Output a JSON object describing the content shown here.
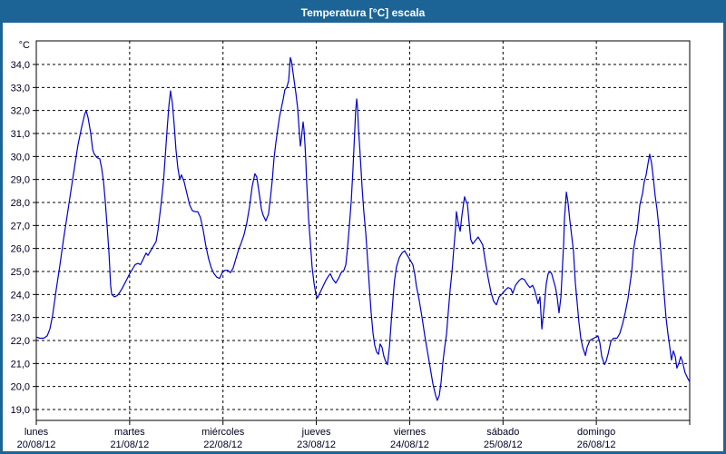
{
  "window": {
    "title": "Temperatura [°C] escala",
    "title_bg": "#1d6496",
    "title_color": "#ffffff",
    "border_color": "#1d6496"
  },
  "chart_data": {
    "type": "line",
    "title": "Temperatura [°C] escala",
    "unit_label": "°C",
    "ylabel": "°C",
    "ylim": [
      18.5,
      35.0
    ],
    "xlim_hours": [
      0,
      168
    ],
    "grid": "dashed",
    "legend": "none",
    "line_color": "#0000cc",
    "axis_color": "#000000",
    "text_color": "#000022",
    "y_ticks": [
      {
        "value": 34,
        "label": "34,0"
      },
      {
        "value": 33,
        "label": "33,0"
      },
      {
        "value": 32,
        "label": "32,0"
      },
      {
        "value": 31,
        "label": "31,0"
      },
      {
        "value": 30,
        "label": "30,0"
      },
      {
        "value": 29,
        "label": "29,0"
      },
      {
        "value": 28,
        "label": "28,0"
      },
      {
        "value": 27,
        "label": "27,0"
      },
      {
        "value": 26,
        "label": "26,0"
      },
      {
        "value": 25,
        "label": "25,0"
      },
      {
        "value": 24,
        "label": "24,0"
      },
      {
        "value": 23,
        "label": "23,0"
      },
      {
        "value": 22,
        "label": "22,0"
      },
      {
        "value": 21,
        "label": "21,0"
      },
      {
        "value": 20,
        "label": "20,0"
      },
      {
        "value": 19,
        "label": "19,0"
      }
    ],
    "days": [
      {
        "name": "lunes",
        "date": "20/08/12"
      },
      {
        "name": "martes",
        "date": "21/08/12"
      },
      {
        "name": "miércoles",
        "date": "22/08/12"
      },
      {
        "name": "jueves",
        "date": "23/08/12"
      },
      {
        "name": "viernes",
        "date": "24/08/12"
      },
      {
        "name": "sábado",
        "date": "25/08/12"
      },
      {
        "name": "domingo",
        "date": "26/08/12"
      }
    ],
    "points": [
      [
        0.0,
        22.15
      ],
      [
        0.9,
        22.1
      ],
      [
        1.9,
        22.1
      ],
      [
        2.8,
        22.2
      ],
      [
        3.5,
        22.5
      ],
      [
        4.2,
        23.1
      ],
      [
        5.1,
        24.2
      ],
      [
        6.1,
        25.3
      ],
      [
        7.0,
        26.4
      ],
      [
        7.9,
        27.4
      ],
      [
        8.9,
        28.5
      ],
      [
        9.8,
        29.5
      ],
      [
        10.7,
        30.5
      ],
      [
        11.7,
        31.3
      ],
      [
        12.4,
        31.8
      ],
      [
        12.8,
        32.0
      ],
      [
        13.3,
        31.7
      ],
      [
        14.0,
        31.0
      ],
      [
        14.5,
        30.3
      ],
      [
        14.9,
        30.1
      ],
      [
        15.6,
        29.95
      ],
      [
        16.3,
        29.9
      ],
      [
        16.8,
        29.5
      ],
      [
        17.3,
        28.9
      ],
      [
        17.7,
        28.1
      ],
      [
        18.2,
        27.0
      ],
      [
        18.7,
        25.8
      ],
      [
        19.1,
        24.4
      ],
      [
        19.4,
        24.0
      ],
      [
        20.1,
        23.9
      ],
      [
        20.8,
        23.95
      ],
      [
        21.5,
        24.1
      ],
      [
        22.2,
        24.3
      ],
      [
        23.1,
        24.6
      ],
      [
        24.0,
        24.9
      ],
      [
        24.7,
        25.1
      ],
      [
        25.4,
        25.3
      ],
      [
        26.1,
        25.35
      ],
      [
        26.8,
        25.3
      ],
      [
        27.5,
        25.55
      ],
      [
        28.2,
        25.8
      ],
      [
        28.7,
        25.7
      ],
      [
        29.4,
        25.9
      ],
      [
        30.1,
        26.1
      ],
      [
        30.8,
        26.3
      ],
      [
        31.3,
        26.8
      ],
      [
        31.7,
        27.4
      ],
      [
        32.2,
        28.1
      ],
      [
        32.7,
        28.9
      ],
      [
        33.1,
        29.9
      ],
      [
        33.6,
        31.1
      ],
      [
        34.1,
        32.2
      ],
      [
        34.5,
        32.85
      ],
      [
        35.0,
        32.3
      ],
      [
        35.5,
        31.3
      ],
      [
        35.9,
        30.3
      ],
      [
        36.4,
        29.5
      ],
      [
        36.9,
        29.0
      ],
      [
        37.3,
        29.2
      ],
      [
        38.0,
        28.9
      ],
      [
        38.7,
        28.4
      ],
      [
        39.4,
        27.9
      ],
      [
        40.1,
        27.65
      ],
      [
        40.8,
        27.6
      ],
      [
        41.5,
        27.6
      ],
      [
        42.2,
        27.35
      ],
      [
        42.9,
        26.8
      ],
      [
        43.6,
        26.1
      ],
      [
        44.3,
        25.55
      ],
      [
        45.0,
        25.15
      ],
      [
        45.7,
        24.9
      ],
      [
        46.4,
        24.75
      ],
      [
        47.1,
        24.7
      ],
      [
        47.8,
        24.95
      ],
      [
        48.5,
        25.05
      ],
      [
        49.2,
        25.05
      ],
      [
        49.9,
        24.95
      ],
      [
        50.6,
        25.15
      ],
      [
        51.3,
        25.55
      ],
      [
        52.0,
        25.95
      ],
      [
        52.7,
        26.25
      ],
      [
        53.4,
        26.6
      ],
      [
        54.1,
        27.1
      ],
      [
        54.8,
        27.8
      ],
      [
        55.5,
        28.7
      ],
      [
        56.2,
        29.25
      ],
      [
        56.7,
        29.1
      ],
      [
        57.4,
        28.3
      ],
      [
        57.9,
        27.7
      ],
      [
        58.3,
        27.45
      ],
      [
        59.0,
        27.2
      ],
      [
        59.7,
        27.5
      ],
      [
        60.2,
        28.2
      ],
      [
        60.7,
        29.0
      ],
      [
        61.1,
        29.9
      ],
      [
        61.6,
        30.6
      ],
      [
        62.1,
        31.2
      ],
      [
        62.5,
        31.7
      ],
      [
        63.0,
        32.1
      ],
      [
        63.5,
        32.5
      ],
      [
        63.9,
        32.9
      ],
      [
        64.4,
        33.0
      ],
      [
        64.9,
        33.3
      ],
      [
        65.1,
        33.8
      ],
      [
        65.3,
        34.3
      ],
      [
        65.6,
        34.15
      ],
      [
        65.8,
        33.9
      ],
      [
        66.3,
        33.3
      ],
      [
        66.7,
        32.8
      ],
      [
        67.2,
        32.1
      ],
      [
        67.7,
        30.9
      ],
      [
        67.9,
        30.45
      ],
      [
        68.1,
        30.7
      ],
      [
        68.6,
        31.5
      ],
      [
        68.8,
        31.2
      ],
      [
        69.1,
        30.5
      ],
      [
        69.3,
        29.8
      ],
      [
        69.5,
        28.9
      ],
      [
        70.0,
        27.3
      ],
      [
        70.5,
        26.2
      ],
      [
        70.9,
        25.2
      ],
      [
        71.4,
        24.5
      ],
      [
        71.9,
        24.0
      ],
      [
        72.3,
        23.85
      ],
      [
        73.0,
        24.1
      ],
      [
        73.7,
        24.35
      ],
      [
        74.4,
        24.6
      ],
      [
        75.1,
        24.8
      ],
      [
        75.6,
        24.9
      ],
      [
        76.3,
        24.65
      ],
      [
        77.0,
        24.5
      ],
      [
        77.7,
        24.7
      ],
      [
        78.4,
        24.95
      ],
      [
        79.1,
        25.05
      ],
      [
        79.6,
        25.3
      ],
      [
        80.0,
        26.0
      ],
      [
        80.5,
        27.0
      ],
      [
        81.0,
        28.1
      ],
      [
        81.4,
        29.4
      ],
      [
        81.9,
        31.2
      ],
      [
        82.1,
        32.0
      ],
      [
        82.4,
        32.5
      ],
      [
        82.6,
        32.1
      ],
      [
        82.8,
        31.3
      ],
      [
        83.3,
        30.0
      ],
      [
        83.8,
        28.6
      ],
      [
        84.2,
        27.6
      ],
      [
        84.7,
        26.7
      ],
      [
        85.2,
        25.5
      ],
      [
        85.6,
        24.4
      ],
      [
        86.1,
        23.2
      ],
      [
        86.6,
        22.3
      ],
      [
        87.0,
        21.8
      ],
      [
        87.5,
        21.5
      ],
      [
        88.0,
        21.4
      ],
      [
        88.4,
        21.85
      ],
      [
        88.9,
        21.7
      ],
      [
        89.4,
        21.3
      ],
      [
        89.8,
        21.1
      ],
      [
        90.3,
        20.95
      ],
      [
        90.8,
        21.7
      ],
      [
        91.2,
        22.7
      ],
      [
        91.7,
        23.8
      ],
      [
        92.1,
        24.6
      ],
      [
        92.6,
        25.2
      ],
      [
        93.3,
        25.6
      ],
      [
        94.0,
        25.8
      ],
      [
        94.7,
        25.9
      ],
      [
        95.4,
        25.7
      ],
      [
        96.1,
        25.5
      ],
      [
        96.8,
        25.3
      ],
      [
        97.3,
        24.9
      ],
      [
        97.7,
        24.4
      ],
      [
        98.4,
        23.8
      ],
      [
        99.2,
        23.0
      ],
      [
        99.9,
        22.2
      ],
      [
        100.6,
        21.5
      ],
      [
        101.3,
        20.8
      ],
      [
        102.0,
        20.1
      ],
      [
        102.7,
        19.6
      ],
      [
        103.1,
        19.4
      ],
      [
        103.6,
        19.6
      ],
      [
        104.1,
        20.2
      ],
      [
        104.5,
        21.0
      ],
      [
        105.0,
        21.7
      ],
      [
        105.5,
        22.3
      ],
      [
        105.9,
        23.2
      ],
      [
        106.4,
        24.2
      ],
      [
        106.9,
        25.0
      ],
      [
        107.3,
        25.9
      ],
      [
        107.8,
        26.9
      ],
      [
        108.0,
        27.6
      ],
      [
        108.5,
        27.1
      ],
      [
        109.0,
        26.75
      ],
      [
        109.4,
        27.4
      ],
      [
        109.9,
        28.0
      ],
      [
        110.1,
        28.25
      ],
      [
        110.6,
        28.0
      ],
      [
        110.8,
        28.0
      ],
      [
        111.3,
        27.1
      ],
      [
        111.7,
        26.4
      ],
      [
        112.2,
        26.2
      ],
      [
        112.9,
        26.35
      ],
      [
        113.6,
        26.5
      ],
      [
        114.3,
        26.3
      ],
      [
        114.8,
        26.15
      ],
      [
        115.5,
        25.4
      ],
      [
        116.2,
        24.7
      ],
      [
        116.9,
        24.1
      ],
      [
        117.6,
        23.7
      ],
      [
        118.3,
        23.55
      ],
      [
        119.0,
        23.9
      ],
      [
        119.9,
        24.05
      ],
      [
        120.6,
        24.2
      ],
      [
        121.3,
        24.3
      ],
      [
        122.0,
        24.25
      ],
      [
        122.5,
        24.05
      ],
      [
        123.2,
        24.4
      ],
      [
        124.1,
        24.6
      ],
      [
        124.8,
        24.7
      ],
      [
        125.5,
        24.65
      ],
      [
        126.2,
        24.45
      ],
      [
        126.9,
        24.3
      ],
      [
        127.6,
        24.4
      ],
      [
        128.1,
        24.2
      ],
      [
        128.6,
        23.9
      ],
      [
        129.0,
        23.6
      ],
      [
        129.5,
        23.9
      ],
      [
        130.0,
        22.5
      ],
      [
        130.7,
        23.65
      ],
      [
        131.1,
        24.45
      ],
      [
        131.6,
        24.9
      ],
      [
        132.1,
        25.0
      ],
      [
        132.5,
        24.9
      ],
      [
        133.0,
        24.6
      ],
      [
        133.5,
        24.3
      ],
      [
        133.9,
        23.9
      ],
      [
        134.4,
        23.2
      ],
      [
        134.9,
        23.9
      ],
      [
        135.3,
        25.3
      ],
      [
        135.6,
        26.2
      ],
      [
        135.8,
        27.3
      ],
      [
        136.3,
        28.45
      ],
      [
        136.7,
        28.0
      ],
      [
        137.2,
        27.2
      ],
      [
        137.7,
        26.5
      ],
      [
        138.1,
        25.9
      ],
      [
        138.6,
        24.5
      ],
      [
        139.1,
        23.6
      ],
      [
        139.5,
        22.8
      ],
      [
        140.0,
        22.1
      ],
      [
        140.5,
        21.7
      ],
      [
        141.2,
        21.35
      ],
      [
        141.6,
        21.7
      ],
      [
        142.3,
        22.0
      ],
      [
        143.3,
        22.1
      ],
      [
        144.0,
        22.15
      ],
      [
        144.4,
        22.2
      ],
      [
        144.9,
        21.9
      ],
      [
        145.4,
        21.3
      ],
      [
        146.1,
        20.95
      ],
      [
        146.5,
        21.1
      ],
      [
        147.0,
        21.4
      ],
      [
        147.7,
        21.95
      ],
      [
        148.4,
        22.1
      ],
      [
        149.3,
        22.1
      ],
      [
        150.0,
        22.3
      ],
      [
        150.7,
        22.7
      ],
      [
        151.4,
        23.2
      ],
      [
        152.1,
        23.8
      ],
      [
        152.6,
        24.4
      ],
      [
        153.1,
        25.0
      ],
      [
        153.5,
        25.9
      ],
      [
        154.0,
        26.4
      ],
      [
        154.5,
        26.8
      ],
      [
        155.2,
        27.9
      ],
      [
        155.9,
        28.4
      ],
      [
        156.3,
        28.9
      ],
      [
        156.8,
        29.2
      ],
      [
        157.3,
        29.7
      ],
      [
        157.7,
        30.1
      ],
      [
        158.2,
        29.7
      ],
      [
        158.7,
        29.0
      ],
      [
        159.1,
        28.3
      ],
      [
        159.6,
        27.7
      ],
      [
        160.1,
        26.9
      ],
      [
        160.5,
        26.0
      ],
      [
        161.0,
        24.9
      ],
      [
        161.5,
        23.9
      ],
      [
        161.9,
        23.0
      ],
      [
        162.4,
        22.3
      ],
      [
        162.9,
        21.7
      ],
      [
        163.3,
        21.15
      ],
      [
        163.8,
        21.55
      ],
      [
        164.3,
        21.3
      ],
      [
        164.7,
        20.8
      ],
      [
        165.2,
        21.0
      ],
      [
        165.7,
        21.3
      ],
      [
        166.1,
        21.1
      ],
      [
        166.4,
        20.9
      ],
      [
        166.8,
        20.6
      ],
      [
        167.5,
        20.35
      ],
      [
        168.0,
        20.2
      ]
    ]
  }
}
